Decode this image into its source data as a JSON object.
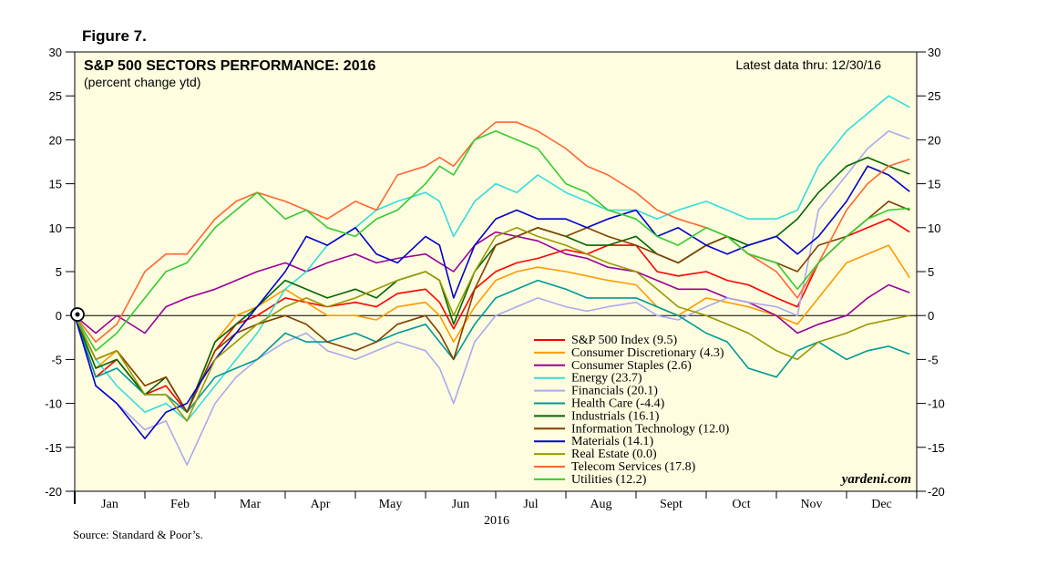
{
  "figure_label": "Figure 7.",
  "source": "Source: Standard & Poor’s.",
  "chart_data": {
    "type": "line",
    "title": "S&P 500 SECTORS PERFORMANCE: 2016",
    "subtitle": "(percent change ytd)",
    "latest_note": "Latest data thru: 12/30/16",
    "watermark": "yardeni.com",
    "xlabel": "2016",
    "ylabel": "",
    "x_ticks": [
      "Jan",
      "Feb",
      "Mar",
      "Apr",
      "May",
      "Jun",
      "Jul",
      "Aug",
      "Sept",
      "Oct",
      "Nov",
      "Dec"
    ],
    "y_ticks": [
      30,
      25,
      20,
      15,
      10,
      5,
      0,
      -5,
      -10,
      -15,
      -20
    ],
    "ylim": [
      -20,
      30
    ],
    "xlim": [
      0,
      12
    ],
    "grid": false,
    "legend_position": "bottom-center",
    "background_color": "#fffde0",
    "series": [
      {
        "name": "S&P 500 Index (9.5)",
        "color": "#ff0000",
        "x": [
          0,
          0.3,
          0.6,
          1,
          1.3,
          1.6,
          2,
          2.3,
          2.6,
          3,
          3.3,
          3.6,
          4,
          4.3,
          4.6,
          5,
          5.2,
          5.4,
          5.7,
          6,
          6.3,
          6.6,
          7,
          7.3,
          7.6,
          8,
          8.3,
          8.6,
          9,
          9.3,
          9.6,
          10,
          10.3,
          10.6,
          11,
          11.3,
          11.6,
          11.9
        ],
        "y": [
          0,
          -7,
          -5,
          -9,
          -8,
          -11,
          -4,
          -1,
          0,
          2,
          1.5,
          1,
          1.5,
          1,
          2.5,
          3,
          1.5,
          -1.5,
          3,
          5,
          6,
          6.5,
          7.5,
          7,
          8,
          8,
          5,
          4.5,
          5,
          4,
          3.5,
          2,
          1,
          6,
          9,
          10,
          11,
          9.5
        ]
      },
      {
        "name": "Consumer Discretionary (4.3)",
        "color": "#ff9900",
        "x": [
          0,
          0.3,
          0.6,
          1,
          1.3,
          1.6,
          2,
          2.3,
          2.6,
          3,
          3.3,
          3.6,
          4,
          4.3,
          4.6,
          5,
          5.2,
          5.4,
          5.7,
          6,
          6.3,
          6.6,
          7,
          7.3,
          7.6,
          8,
          8.3,
          8.6,
          9,
          9.3,
          9.6,
          10,
          10.3,
          10.6,
          11,
          11.3,
          11.6,
          11.9
        ],
        "y": [
          0,
          -6,
          -4,
          -8,
          -7,
          -11,
          -3,
          0,
          1,
          3,
          1.5,
          0,
          0,
          -0.5,
          1,
          1.5,
          0,
          -3,
          1,
          4,
          5,
          5.5,
          5,
          4.5,
          4,
          3.5,
          1,
          0,
          2,
          1.5,
          1,
          0,
          -1,
          2,
          6,
          7,
          8,
          4.3
        ]
      },
      {
        "name": "Consumer Staples (2.6)",
        "color": "#990099",
        "x": [
          0,
          0.3,
          0.6,
          1,
          1.3,
          1.6,
          2,
          2.3,
          2.6,
          3,
          3.3,
          3.6,
          4,
          4.3,
          4.6,
          5,
          5.2,
          5.4,
          5.7,
          6,
          6.3,
          6.6,
          7,
          7.3,
          7.6,
          8,
          8.3,
          8.6,
          9,
          9.3,
          9.6,
          10,
          10.3,
          10.6,
          11,
          11.3,
          11.6,
          11.9
        ],
        "y": [
          0,
          -2,
          0,
          -2,
          1,
          2,
          3,
          4,
          5,
          6,
          5,
          6,
          7,
          6,
          6.5,
          7,
          6,
          5,
          8,
          9.5,
          9,
          8.5,
          7,
          6.5,
          5.5,
          5,
          4,
          3,
          3,
          2,
          1.5,
          0,
          -2,
          -1,
          0,
          2,
          3.5,
          2.6
        ]
      },
      {
        "name": "Energy (23.7)",
        "color": "#33dddd",
        "x": [
          0,
          0.3,
          0.6,
          1,
          1.3,
          1.6,
          2,
          2.3,
          2.6,
          3,
          3.3,
          3.6,
          4,
          4.3,
          4.6,
          5,
          5.2,
          5.4,
          5.7,
          6,
          6.3,
          6.6,
          7,
          7.3,
          7.6,
          8,
          8.3,
          8.6,
          9,
          9.3,
          9.6,
          10,
          10.3,
          10.6,
          11,
          11.3,
          11.6,
          11.9
        ],
        "y": [
          0,
          -5,
          -8,
          -11,
          -10,
          -12,
          -8,
          -5,
          -2,
          3,
          5,
          8,
          10,
          12,
          13,
          14,
          13,
          9,
          13,
          15,
          14,
          16,
          14,
          13,
          12,
          12,
          11,
          12,
          13,
          12,
          11,
          11,
          12,
          17,
          21,
          23,
          25,
          23.7
        ]
      },
      {
        "name": "Financials (20.1)",
        "color": "#aaaaee",
        "x": [
          0,
          0.3,
          0.6,
          1,
          1.3,
          1.6,
          2,
          2.3,
          2.6,
          3,
          3.3,
          3.6,
          4,
          4.3,
          4.6,
          5,
          5.2,
          5.4,
          5.7,
          6,
          6.3,
          6.6,
          7,
          7.3,
          7.6,
          8,
          8.3,
          8.6,
          9,
          9.3,
          9.6,
          10,
          10.3,
          10.6,
          11,
          11.3,
          11.6,
          11.9
        ],
        "y": [
          0,
          -8,
          -10,
          -13,
          -12,
          -17,
          -10,
          -7,
          -5,
          -3,
          -2,
          -4,
          -5,
          -4,
          -3,
          -4,
          -6,
          -10,
          -3,
          0,
          1,
          2,
          1,
          0.5,
          1,
          1.5,
          0,
          -0.5,
          1,
          2,
          1.5,
          1,
          0,
          12,
          16,
          19,
          21,
          20.1
        ]
      },
      {
        "name": "Health Care (-4.4)",
        "color": "#009999",
        "x": [
          0,
          0.3,
          0.6,
          1,
          1.3,
          1.6,
          2,
          2.3,
          2.6,
          3,
          3.3,
          3.6,
          4,
          4.3,
          4.6,
          5,
          5.2,
          5.4,
          5.7,
          6,
          6.3,
          6.6,
          7,
          7.3,
          7.6,
          8,
          8.3,
          8.6,
          9,
          9.3,
          9.6,
          10,
          10.3,
          10.6,
          11,
          11.3,
          11.6,
          11.9
        ],
        "y": [
          0,
          -7,
          -6,
          -9,
          -9,
          -11,
          -7,
          -6,
          -5,
          -2,
          -3,
          -3,
          -2,
          -3,
          -2,
          -1,
          -3,
          -5,
          -1,
          2,
          3,
          4,
          3,
          2,
          2,
          2,
          1,
          0,
          -2,
          -3,
          -6,
          -7,
          -4,
          -3,
          -5,
          -4,
          -3.5,
          -4.4
        ]
      },
      {
        "name": "Industrials (16.1)",
        "color": "#006600",
        "x": [
          0,
          0.3,
          0.6,
          1,
          1.3,
          1.6,
          2,
          2.3,
          2.6,
          3,
          3.3,
          3.6,
          4,
          4.3,
          4.6,
          5,
          5.2,
          5.4,
          5.7,
          6,
          6.3,
          6.6,
          7,
          7.3,
          7.6,
          8,
          8.3,
          8.6,
          9,
          9.3,
          9.6,
          10,
          10.3,
          10.6,
          11,
          11.3,
          11.6,
          11.9
        ],
        "y": [
          0,
          -6,
          -5,
          -9,
          -7,
          -11,
          -3,
          -1,
          1,
          4,
          3,
          2,
          3,
          2,
          4,
          5,
          4,
          -1,
          5,
          8,
          9,
          10,
          9,
          8,
          8,
          9,
          7,
          6,
          8,
          9,
          8,
          9,
          11,
          14,
          17,
          18,
          17,
          16.1
        ]
      },
      {
        "name": "Information Technology (12.0)",
        "color": "#804000",
        "x": [
          0,
          0.3,
          0.6,
          1,
          1.3,
          1.6,
          2,
          2.3,
          2.6,
          3,
          3.3,
          3.6,
          4,
          4.3,
          4.6,
          5,
          5.2,
          5.4,
          5.7,
          6,
          6.3,
          6.6,
          7,
          7.3,
          7.6,
          8,
          8.3,
          8.6,
          9,
          9.3,
          9.6,
          10,
          10.3,
          10.6,
          11,
          11.3,
          11.6,
          11.9
        ],
        "y": [
          0,
          -5,
          -4,
          -8,
          -7,
          -11,
          -4,
          -2,
          -1,
          0,
          -1,
          -3,
          -4,
          -3,
          -1,
          0,
          -2,
          -5,
          3,
          8,
          9,
          10,
          9,
          10,
          9,
          8,
          7,
          6,
          8,
          9,
          7,
          6,
          5,
          8,
          9,
          11,
          13,
          12
        ]
      },
      {
        "name": "Materials (14.1)",
        "color": "#0000cc",
        "x": [
          0,
          0.3,
          0.6,
          1,
          1.3,
          1.6,
          2,
          2.3,
          2.6,
          3,
          3.3,
          3.6,
          4,
          4.3,
          4.6,
          5,
          5.2,
          5.4,
          5.7,
          6,
          6.3,
          6.6,
          7,
          7.3,
          7.6,
          8,
          8.3,
          8.6,
          9,
          9.3,
          9.6,
          10,
          10.3,
          10.6,
          11,
          11.3,
          11.6,
          11.9
        ],
        "y": [
          0,
          -8,
          -10,
          -14,
          -11,
          -10,
          -5,
          -2,
          1,
          5,
          9,
          8,
          10,
          7,
          6,
          9,
          8,
          2,
          8,
          11,
          12,
          11,
          11,
          10,
          11,
          12,
          9,
          10,
          8,
          7,
          8,
          9,
          7,
          9,
          13,
          17,
          16,
          14.1
        ]
      },
      {
        "name": "Real Estate (0.0)",
        "color": "#999900",
        "x": [
          0,
          0.3,
          0.6,
          1,
          1.3,
          1.6,
          2,
          2.3,
          2.6,
          3,
          3.3,
          3.6,
          4,
          4.3,
          4.6,
          5,
          5.2,
          5.4,
          5.7,
          6,
          6.3,
          6.6,
          7,
          7.3,
          7.6,
          8,
          8.3,
          8.6,
          9,
          9.3,
          9.6,
          10,
          10.3,
          10.6,
          11,
          11.3,
          11.6,
          11.9
        ],
        "y": [
          0,
          -5,
          -4,
          -9,
          -9,
          -12,
          -5,
          -3,
          -1,
          1,
          2,
          1,
          2,
          3,
          4,
          5,
          4,
          0,
          5,
          9,
          10,
          9,
          8,
          7,
          6,
          5,
          3,
          1,
          0,
          -1,
          -2,
          -4,
          -5,
          -3,
          -2,
          -1,
          -0.5,
          0
        ]
      },
      {
        "name": "Telecom Services (17.8)",
        "color": "#ff6633",
        "x": [
          0,
          0.3,
          0.6,
          1,
          1.3,
          1.6,
          2,
          2.3,
          2.6,
          3,
          3.3,
          3.6,
          4,
          4.3,
          4.6,
          5,
          5.2,
          5.4,
          5.7,
          6,
          6.3,
          6.6,
          7,
          7.3,
          7.6,
          8,
          8.3,
          8.6,
          9,
          9.3,
          9.6,
          10,
          10.3,
          10.6,
          11,
          11.3,
          11.6,
          11.9
        ],
        "y": [
          0,
          -3,
          -1,
          5,
          7,
          7,
          11,
          13,
          14,
          13,
          12,
          11,
          13,
          12,
          16,
          17,
          18,
          17,
          20,
          22,
          22,
          21,
          19,
          17,
          16,
          14,
          12,
          11,
          10,
          9,
          7,
          5,
          2,
          6,
          12,
          15,
          17,
          17.8
        ]
      },
      {
        "name": "Utilities (12.2)",
        "color": "#33cc33",
        "x": [
          0,
          0.3,
          0.6,
          1,
          1.3,
          1.6,
          2,
          2.3,
          2.6,
          3,
          3.3,
          3.6,
          4,
          4.3,
          4.6,
          5,
          5.2,
          5.4,
          5.7,
          6,
          6.3,
          6.6,
          7,
          7.3,
          7.6,
          8,
          8.3,
          8.6,
          9,
          9.3,
          9.6,
          10,
          10.3,
          10.6,
          11,
          11.3,
          11.6,
          11.9
        ],
        "y": [
          0,
          -4,
          -2,
          2,
          5,
          6,
          10,
          12,
          14,
          11,
          12,
          10,
          9,
          11,
          12,
          15,
          17,
          16,
          20,
          21,
          20,
          19,
          15,
          14,
          12,
          11,
          9,
          8,
          10,
          9,
          7,
          6,
          3,
          6,
          9,
          11,
          12,
          12.2
        ]
      }
    ]
  }
}
